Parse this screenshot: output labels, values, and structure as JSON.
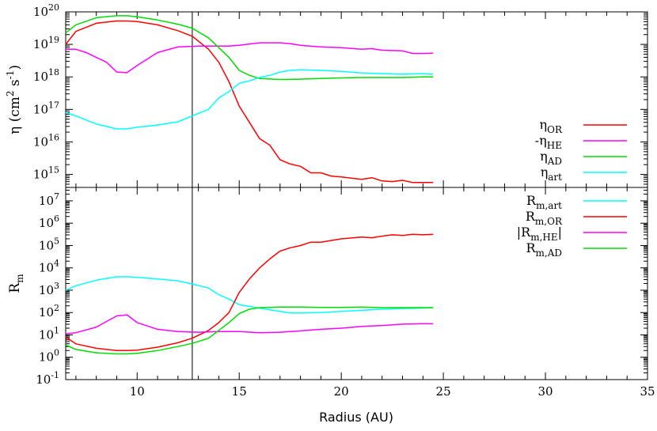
{
  "chart_data": [
    {
      "type": "line",
      "ylabel": {
        "main": "η (cm",
        "sup1": "2",
        "mid": " s",
        "sup2": "-1",
        "end": ")"
      },
      "ylog": true,
      "ylim_exp": [
        14.6,
        20
      ],
      "xlim": [
        6.5,
        35
      ],
      "yticks": [
        {
          "base": "10",
          "exp": "15",
          "v": 15
        },
        {
          "base": "10",
          "exp": "16",
          "v": 16
        },
        {
          "base": "10",
          "exp": "17",
          "v": 17
        },
        {
          "base": "10",
          "exp": "18",
          "v": 18
        },
        {
          "base": "10",
          "exp": "19",
          "v": 19
        },
        {
          "base": "10",
          "exp": "20",
          "v": 20
        }
      ],
      "vline_x": 12.7,
      "legend_position": "bottom-right",
      "series": [
        {
          "name": "η",
          "sub": "OR",
          "color": "#ff0000",
          "x": [
            6.5,
            7,
            8,
            9,
            9.5,
            10,
            11,
            12,
            12.7,
            13.5,
            14,
            14.5,
            15,
            16,
            16.5,
            17,
            17.5,
            18,
            18.5,
            19,
            19.5,
            20,
            21,
            21.5,
            22,
            22.5,
            23,
            23.5,
            24,
            24.5
          ],
          "y": [
            19.0,
            19.4,
            19.65,
            19.72,
            19.72,
            19.7,
            19.6,
            19.42,
            19.25,
            18.85,
            18.45,
            17.85,
            17.1,
            16.1,
            15.9,
            15.45,
            15.32,
            15.25,
            15.05,
            15.05,
            14.95,
            14.92,
            14.85,
            14.9,
            14.8,
            14.78,
            14.82,
            14.75,
            14.75,
            14.75
          ]
        },
        {
          "name": "-η",
          "sub": "HE",
          "color": "#ff00ff",
          "x": [
            6.5,
            7,
            7.5,
            8,
            8.5,
            9,
            9.5,
            10,
            10.5,
            11,
            12,
            13,
            14,
            14.5,
            15,
            16,
            16.5,
            17,
            17.5,
            18,
            19,
            20,
            21,
            21.5,
            22,
            23,
            23.5,
            24,
            24.5
          ],
          "y": [
            18.85,
            18.85,
            18.75,
            18.6,
            18.45,
            18.15,
            18.13,
            18.35,
            18.55,
            18.75,
            18.92,
            18.95,
            18.95,
            18.95,
            18.97,
            19.05,
            19.05,
            19.05,
            19.02,
            18.97,
            18.92,
            18.9,
            18.85,
            18.87,
            18.82,
            18.8,
            18.72,
            18.72,
            18.73
          ]
        },
        {
          "name": "η",
          "sub": "AD",
          "color": "#00dd00",
          "x": [
            6.5,
            7,
            8,
            9,
            9.5,
            10,
            11,
            12,
            12.7,
            13.5,
            14,
            14.5,
            15,
            15.5,
            16,
            17,
            18,
            19,
            20,
            21,
            22,
            23,
            24,
            24.5
          ],
          "y": [
            19.35,
            19.6,
            19.82,
            19.88,
            19.88,
            19.85,
            19.75,
            19.62,
            19.5,
            19.2,
            18.9,
            18.6,
            18.2,
            18.05,
            17.95,
            17.92,
            17.93,
            17.95,
            17.97,
            17.98,
            17.98,
            17.98,
            18.0,
            18.0
          ]
        },
        {
          "name": "η",
          "sub": "art",
          "color": "#00ffff",
          "x": [
            6.5,
            7,
            8,
            9,
            9.5,
            10,
            11,
            12,
            12.7,
            13.5,
            14,
            14.5,
            15,
            15.5,
            16,
            16.5,
            17,
            17.5,
            18,
            19,
            20,
            21,
            22,
            23,
            24,
            24.5
          ],
          "y": [
            16.9,
            16.8,
            16.55,
            16.4,
            16.4,
            16.45,
            16.52,
            16.62,
            16.8,
            17.0,
            17.35,
            17.55,
            17.8,
            17.88,
            17.98,
            18.05,
            18.15,
            18.2,
            18.22,
            18.2,
            18.17,
            18.12,
            18.1,
            18.08,
            18.1,
            18.08
          ]
        }
      ]
    },
    {
      "type": "line",
      "ylabel": {
        "main": "R",
        "sub": "m"
      },
      "ylog": true,
      "ylim_exp": [
        -1,
        7.6
      ],
      "xlim": [
        6.5,
        35
      ],
      "xlabel": "Radius (AU)",
      "xticks": [
        "10",
        "15",
        "20",
        "25",
        "30",
        "35"
      ],
      "yticks": [
        {
          "base": "10",
          "exp": "-1",
          "v": -1
        },
        {
          "base": "10",
          "exp": "0",
          "v": 0
        },
        {
          "base": "10",
          "exp": "1",
          "v": 1
        },
        {
          "base": "10",
          "exp": "2",
          "v": 2
        },
        {
          "base": "10",
          "exp": "3",
          "v": 3
        },
        {
          "base": "10",
          "exp": "4",
          "v": 4
        },
        {
          "base": "10",
          "exp": "5",
          "v": 5
        },
        {
          "base": "10",
          "exp": "6",
          "v": 6
        },
        {
          "base": "10",
          "exp": "7",
          "v": 7
        }
      ],
      "vline_x": 12.7,
      "legend_position": "top-right",
      "series": [
        {
          "name": "R",
          "sub": "m,art",
          "prefix": "",
          "suffix": "",
          "color": "#00ffff",
          "x": [
            6.5,
            7,
            8,
            9,
            9.5,
            10,
            11,
            12,
            12.7,
            13.5,
            14,
            14.5,
            15,
            16,
            17,
            17.5,
            18,
            19,
            20,
            21,
            22,
            23,
            24,
            24.5
          ],
          "y": [
            3.0,
            3.2,
            3.45,
            3.6,
            3.6,
            3.58,
            3.5,
            3.42,
            3.28,
            3.1,
            2.8,
            2.6,
            2.35,
            2.2,
            2.05,
            1.98,
            1.98,
            2.0,
            2.05,
            2.1,
            2.15,
            2.18,
            2.2,
            2.22
          ]
        },
        {
          "name": "R",
          "sub": "m,OR",
          "prefix": "",
          "suffix": "",
          "color": "#ff0000",
          "x": [
            6.5,
            7,
            8,
            9,
            9.5,
            10,
            11,
            12,
            12.7,
            13.5,
            14,
            14.5,
            15,
            15.5,
            16,
            16.5,
            17,
            17.5,
            18,
            18.5,
            19,
            20,
            21,
            21.5,
            22,
            22.5,
            23,
            23.5,
            24,
            24.5
          ],
          "y": [
            0.9,
            0.6,
            0.4,
            0.3,
            0.3,
            0.32,
            0.45,
            0.65,
            0.85,
            1.2,
            1.55,
            2.0,
            2.9,
            3.5,
            4.0,
            4.4,
            4.75,
            4.9,
            5.0,
            5.15,
            5.15,
            5.3,
            5.38,
            5.35,
            5.42,
            5.48,
            5.45,
            5.5,
            5.48,
            5.5
          ]
        },
        {
          "name": "|R",
          "sub": "m,HE",
          "prefix": "",
          "suffix": "|",
          "color": "#ff00ff",
          "x": [
            6.5,
            7,
            8,
            8.5,
            9,
            9.5,
            10,
            11,
            12,
            13,
            14,
            15,
            16,
            17,
            18,
            19,
            20,
            21,
            22,
            23,
            24,
            24.5
          ],
          "y": [
            1.05,
            1.1,
            1.35,
            1.6,
            1.85,
            1.9,
            1.55,
            1.25,
            1.15,
            1.12,
            1.15,
            1.15,
            1.1,
            1.12,
            1.18,
            1.25,
            1.3,
            1.38,
            1.42,
            1.48,
            1.5,
            1.5
          ]
        },
        {
          "name": "R",
          "sub": "m,AD",
          "prefix": "",
          "suffix": "",
          "color": "#00dd00",
          "x": [
            6.5,
            7,
            8,
            9,
            9.5,
            10,
            11,
            12,
            12.7,
            13.5,
            14,
            14.5,
            15,
            15.5,
            16,
            17,
            18,
            19,
            20,
            21,
            22,
            23,
            24,
            24.5
          ],
          "y": [
            0.55,
            0.35,
            0.2,
            0.15,
            0.15,
            0.18,
            0.3,
            0.48,
            0.62,
            0.85,
            1.2,
            1.55,
            1.95,
            2.15,
            2.22,
            2.25,
            2.25,
            2.23,
            2.23,
            2.25,
            2.22,
            2.22,
            2.22,
            2.22
          ]
        }
      ]
    }
  ]
}
